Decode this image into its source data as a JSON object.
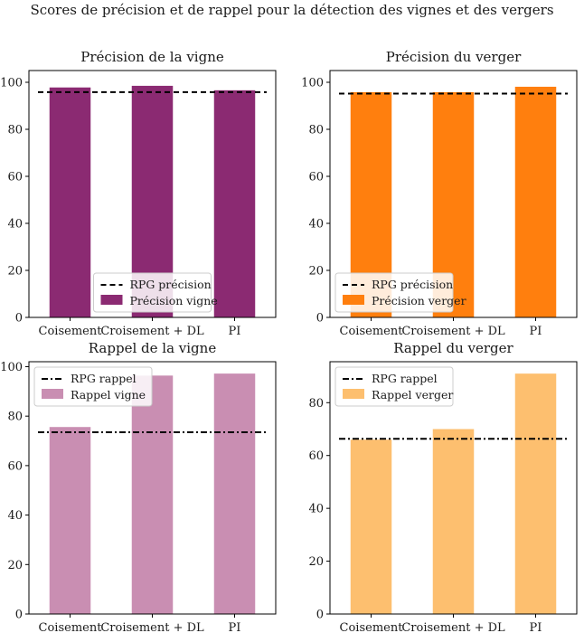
{
  "figure": {
    "suptitle": "Scores de précision et de rappel pour la détection des vignes et des vergers"
  },
  "chart_data": [
    {
      "type": "bar",
      "title": "Précision de la vigne",
      "categories": [
        "Coisement",
        "Croisement + DL",
        "PI"
      ],
      "series": [
        {
          "name": "Précision vigne",
          "values": [
            97.8,
            98.5,
            96.6
          ]
        }
      ],
      "reference_line": {
        "name": "RPG précision",
        "value": 95.8,
        "style": "dashed"
      },
      "ylim": [
        0,
        105
      ],
      "yticks": [
        0,
        20,
        40,
        60,
        80,
        100
      ],
      "legend": "bottom-center",
      "colors": {
        "bar": "#8B2A72",
        "line": "#000000"
      }
    },
    {
      "type": "bar",
      "title": "Précision du verger",
      "categories": [
        "Coisement",
        "Croisement + DL",
        "PI"
      ],
      "series": [
        {
          "name": "Précision verger",
          "values": [
            95.8,
            95.8,
            98.1
          ]
        }
      ],
      "reference_line": {
        "name": "RPG précision",
        "value": 95.2,
        "style": "dashed"
      },
      "ylim": [
        0,
        105
      ],
      "yticks": [
        0,
        20,
        40,
        60,
        80,
        100
      ],
      "legend": "bottom-left",
      "colors": {
        "bar": "#FF7F0E",
        "line": "#000000"
      }
    },
    {
      "type": "bar",
      "title": "Rappel de la vigne",
      "categories": [
        "Coisement",
        "Croisement + DL",
        "PI"
      ],
      "series": [
        {
          "name": "Rappel vigne",
          "values": [
            75.6,
            96.4,
            97.2
          ]
        }
      ],
      "reference_line": {
        "name": "RPG rappel",
        "value": 73.5,
        "style": "dashdot"
      },
      "ylim": [
        0,
        102
      ],
      "yticks": [
        0,
        20,
        40,
        60,
        80,
        100
      ],
      "legend": "top-left",
      "colors": {
        "bar": "#C98EB2",
        "line": "#000000"
      }
    },
    {
      "type": "bar",
      "title": "Rappel du verger",
      "categories": [
        "Coisement",
        "Croisement + DL",
        "PI"
      ],
      "series": [
        {
          "name": "Rappel verger",
          "values": [
            66.0,
            70.0,
            91.0
          ]
        }
      ],
      "reference_line": {
        "name": "RPG rappel",
        "value": 66.3,
        "style": "dashdot"
      },
      "ylim": [
        0,
        95.5
      ],
      "yticks": [
        0,
        20,
        40,
        60,
        80
      ],
      "legend": "top-left",
      "colors": {
        "bar": "#FDBF6F",
        "line": "#000000"
      }
    }
  ]
}
